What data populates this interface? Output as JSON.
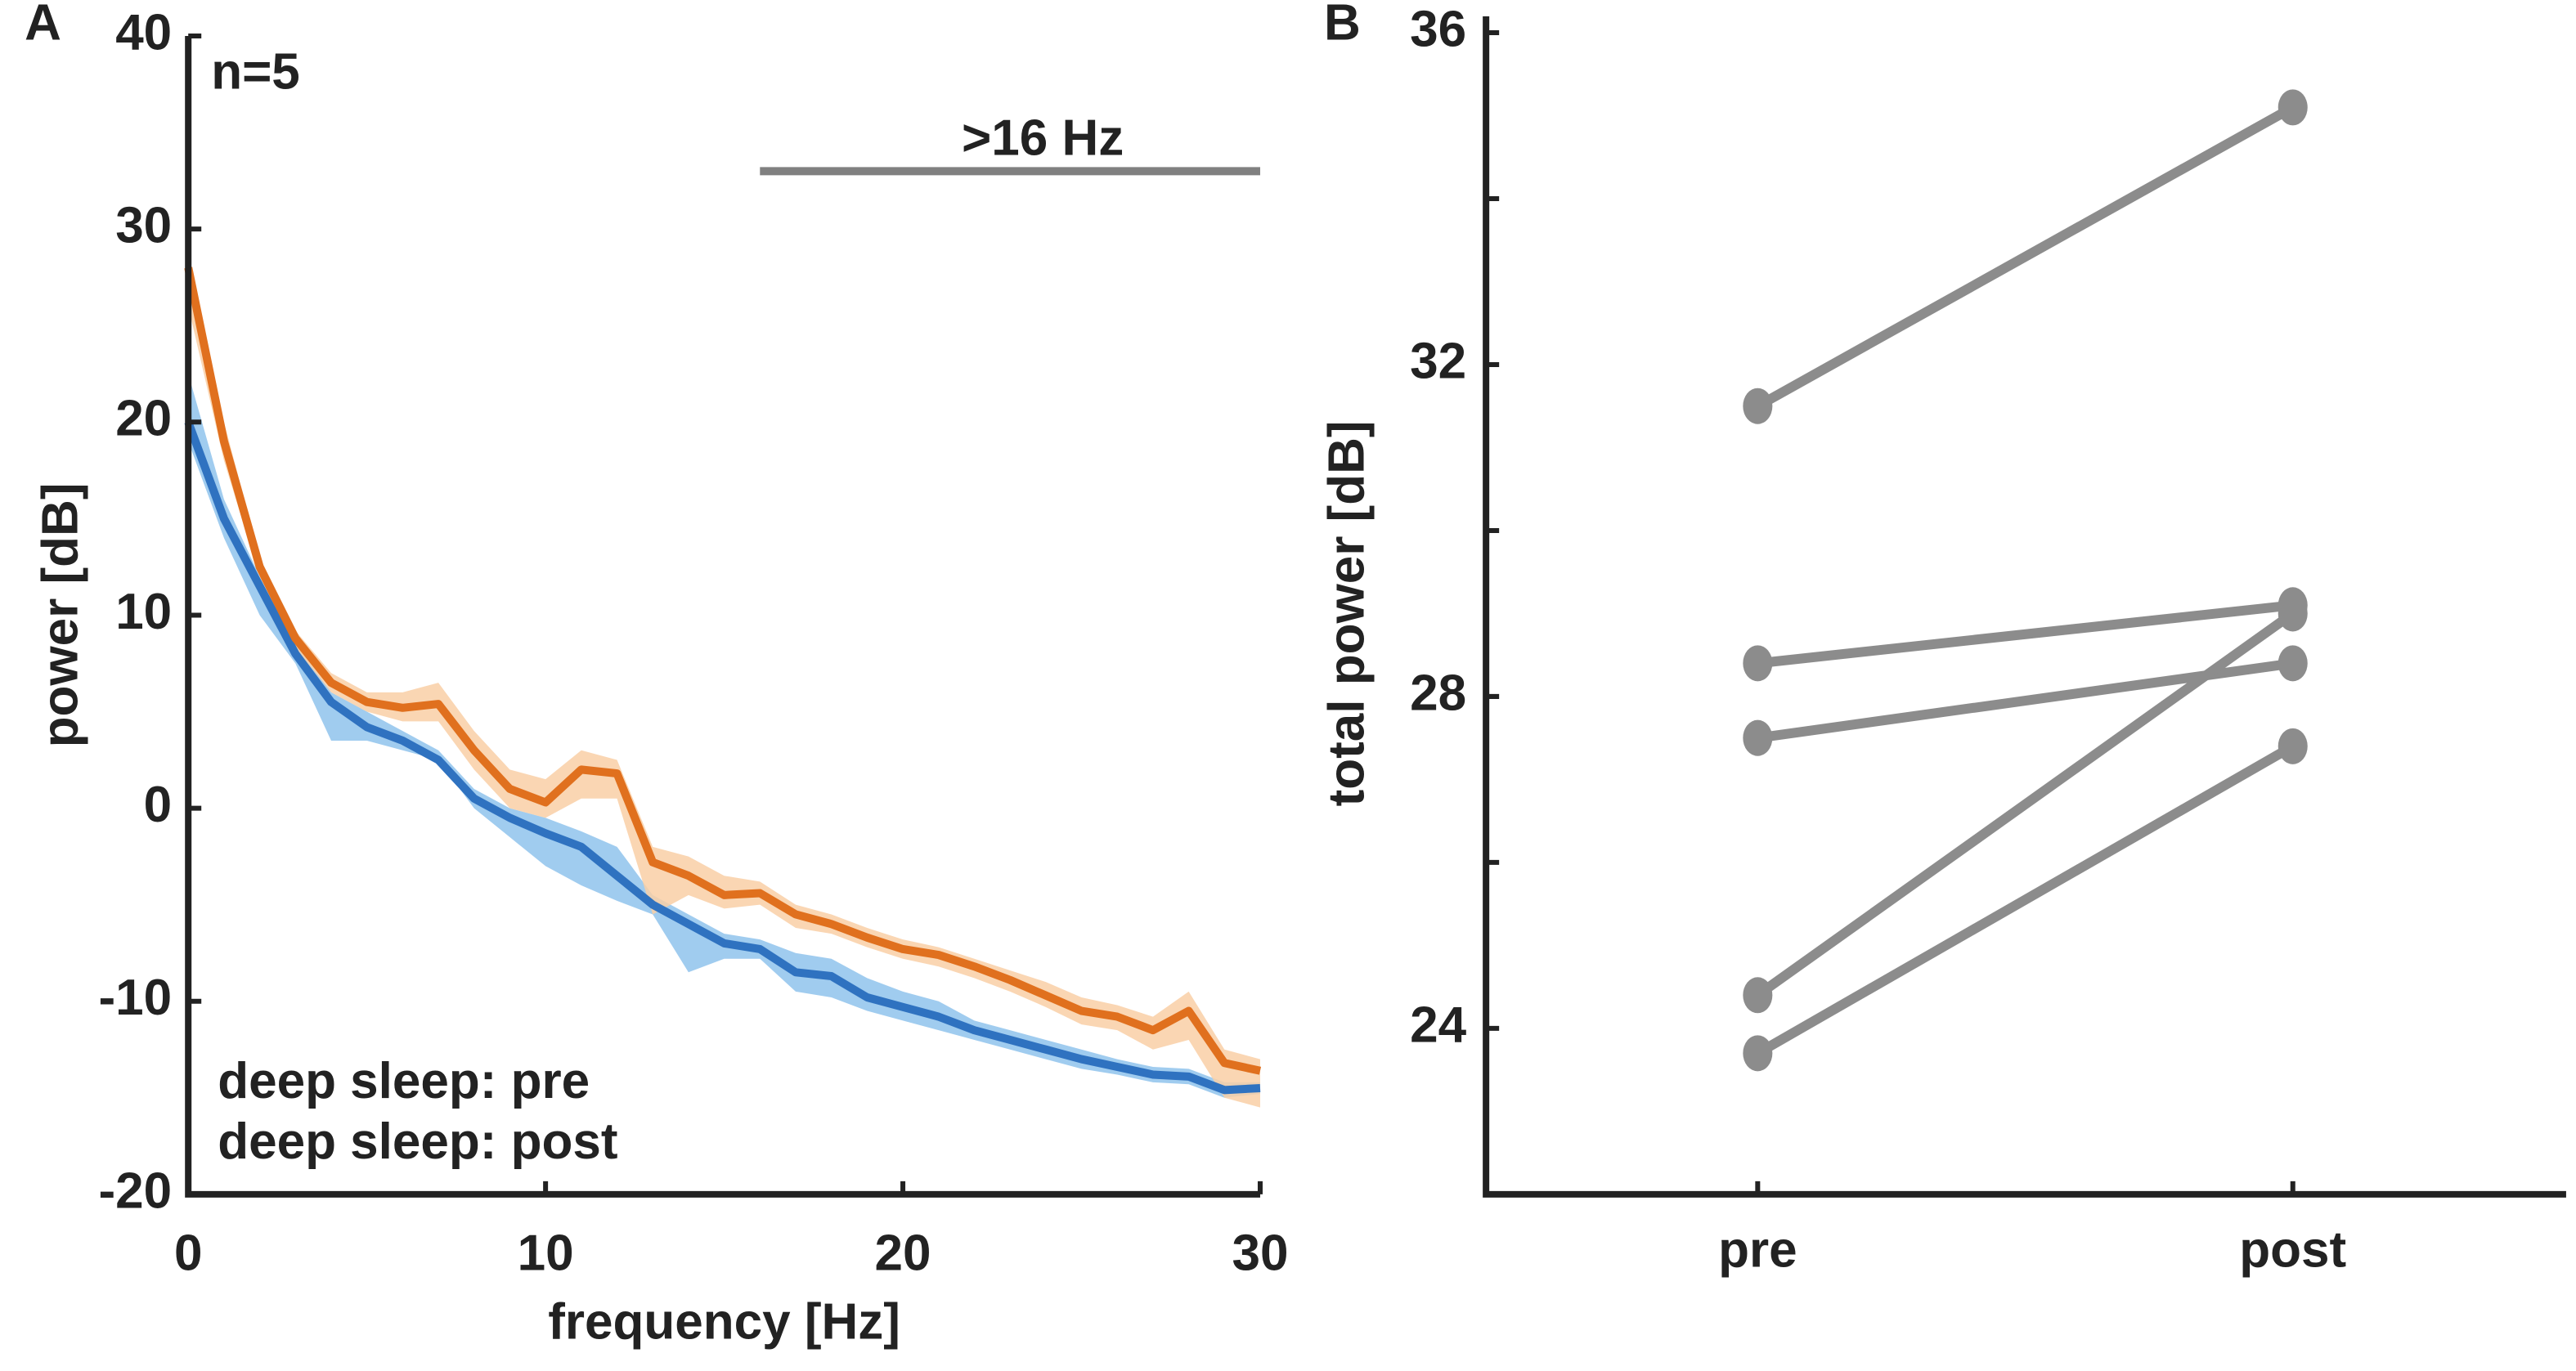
{
  "chart_data": [
    {
      "type": "line",
      "panel": "A",
      "xlabel": "frequency [Hz]",
      "ylabel": "power [dB]",
      "xlim": [
        0,
        30
      ],
      "ylim": [
        -20,
        40
      ],
      "xticks": [
        0,
        10,
        20,
        30
      ],
      "yticks": [
        -20,
        -10,
        0,
        10,
        20,
        30,
        40
      ],
      "annotations": [
        {
          "text": "n=5"
        },
        {
          "text": ">16 Hz",
          "x": [
            16,
            30
          ],
          "y": 33,
          "color": "#808080"
        }
      ],
      "x": [
        0,
        1,
        2,
        3,
        4,
        5,
        6,
        7,
        8,
        9,
        10,
        11,
        12,
        13,
        14,
        15,
        16,
        17,
        18,
        19,
        20,
        21,
        22,
        23,
        24,
        25,
        26,
        27,
        28,
        29,
        30
      ],
      "series": [
        {
          "name": "deep sleep: pre",
          "color": "#2f72c0",
          "band_color": "#8fc3ec",
          "values": [
            20,
            15,
            11.5,
            8,
            5.5,
            4.2,
            3.5,
            2.5,
            0.5,
            -0.5,
            -1.3,
            -2,
            -3.5,
            -5,
            -6,
            -7,
            -7.3,
            -8.5,
            -8.7,
            -9.8,
            -10.3,
            -10.8,
            -11.5,
            -12,
            -12.5,
            -13,
            -13.4,
            -13.8,
            -13.9,
            -14.6,
            -14.5
          ],
          "lower": [
            19,
            14,
            10,
            7.5,
            3.5,
            3.5,
            3,
            2.5,
            0,
            -1.5,
            -3,
            -4,
            -4.8,
            -5.5,
            -8.5,
            -7.8,
            -7.8,
            -9.5,
            -9.8,
            -10.5,
            -11,
            -11.5,
            -12,
            -12.5,
            -13,
            -13.5,
            -13.8,
            -14.2,
            -14.3,
            -15,
            -14.8
          ],
          "upper": [
            22.5,
            16,
            12,
            8.5,
            6,
            5,
            4,
            3,
            1,
            0,
            -0.5,
            -1.2,
            -2,
            -4.5,
            -5.5,
            -6.5,
            -6.8,
            -7.5,
            -7.8,
            -8.8,
            -9.5,
            -10,
            -11,
            -11.5,
            -12,
            -12.5,
            -13,
            -13.4,
            -13.5,
            -14.2,
            -14.2
          ]
        },
        {
          "name": "deep sleep: post",
          "color": "#e0701e",
          "band_color": "#f9cfa6",
          "values": [
            28,
            19,
            12.5,
            8.8,
            6.5,
            5.5,
            5.2,
            5.4,
            3,
            1,
            0.3,
            2,
            1.8,
            -2.8,
            -3.5,
            -4.5,
            -4.4,
            -5.5,
            -6,
            -6.7,
            -7.3,
            -7.6,
            -8.2,
            -8.9,
            -9.7,
            -10.5,
            -10.8,
            -11.5,
            -10.5,
            -13.2,
            -13.6
          ],
          "lower": [
            26,
            18,
            12,
            8.3,
            6,
            5,
            4.5,
            4.5,
            2,
            0,
            -0.5,
            0.5,
            0.5,
            -5.5,
            -4.5,
            -5.2,
            -5,
            -6.2,
            -6.5,
            -7.2,
            -7.8,
            -8.2,
            -8.8,
            -9.5,
            -10.3,
            -11.2,
            -11.5,
            -12.5,
            -12,
            -15,
            -15.5
          ],
          "upper": [
            28.5,
            20,
            13,
            9.2,
            7,
            6,
            6,
            6.5,
            4,
            2,
            1.5,
            3,
            2.5,
            -2,
            -2.5,
            -3.5,
            -3.8,
            -5,
            -5.5,
            -6.2,
            -6.8,
            -7.2,
            -7.8,
            -8.4,
            -9,
            -9.8,
            -10.2,
            -10.8,
            -9.5,
            -12.5,
            -13
          ]
        }
      ]
    },
    {
      "type": "slope",
      "panel": "B",
      "ylabel": "total power [dB]",
      "categories": [
        "pre",
        "post"
      ],
      "ylim": [
        22,
        36
      ],
      "yticks": [
        24,
        28,
        32,
        36
      ],
      "minor_yticks": [
        26,
        30,
        34
      ],
      "color": "#8c8c8c",
      "series": [
        {
          "values": [
            31.5,
            35.1
          ]
        },
        {
          "values": [
            28.4,
            29.1
          ]
        },
        {
          "values": [
            27.5,
            28.4
          ]
        },
        {
          "values": [
            24.4,
            29.0
          ]
        },
        {
          "values": [
            23.7,
            27.4
          ]
        }
      ]
    }
  ]
}
